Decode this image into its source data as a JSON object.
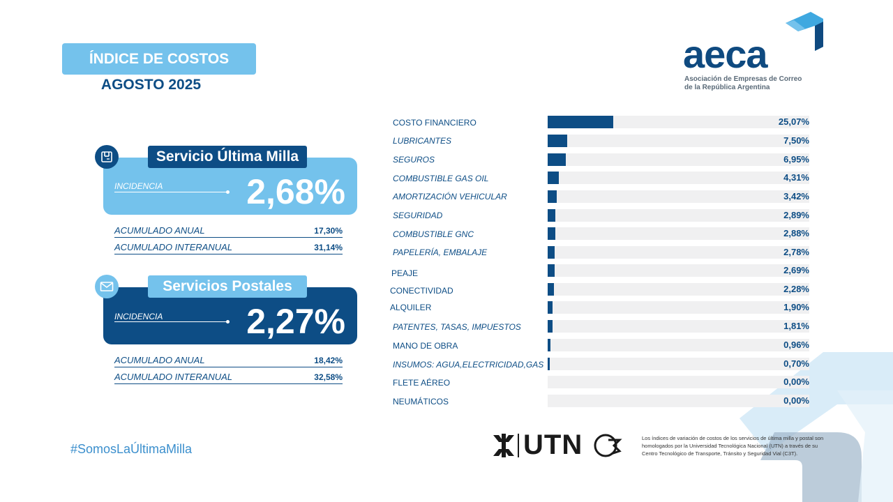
{
  "header": {
    "title": "ÍNDICE DE COSTOS",
    "subtitle": "AGOSTO 2025"
  },
  "logo": {
    "word": "aeca",
    "line1": "Asociación de Empresas de Correo",
    "line2": "de la República Argentina"
  },
  "panels": [
    {
      "title": "Servicio Última Milla",
      "icon": "box-icon",
      "incidencia_label": "INCIDENCIA",
      "incidencia_value": "2,68%",
      "acumulado_anual_label": "ACUMULADO ANUAL",
      "acumulado_anual": "17,30%",
      "acumulado_interanual_label": "ACUMULADO INTERANUAL",
      "acumulado_interanual": "31,14%"
    },
    {
      "title": "Servicios Postales",
      "icon": "mail-icon",
      "incidencia_label": "INCIDENCIA",
      "incidencia_value": "2,27%",
      "acumulado_anual_label": "ACUMULADO ANUAL",
      "acumulado_anual": "18,42%",
      "acumulado_interanual_label": "ACUMULADO INTERANUAL",
      "acumulado_interanual": "32,58%"
    }
  ],
  "chart_data": {
    "type": "bar",
    "orientation": "horizontal",
    "categories": [
      "COSTO FINANCIERO",
      "LUBRICANTES",
      "SEGUROS",
      "COMBUSTIBLE GAS OIL",
      "AMORTIZACIÓN VEHICULAR",
      "SEGURIDAD",
      "COMBUSTIBLE GNC",
      "PAPELERÍA, EMBALAJE",
      "PEAJE",
      "CONECTIVIDAD",
      "ALQUILER",
      "PATENTES, TASAS, IMPUESTOS",
      "MANO DE OBRA",
      "INSUMOS: AGUA,ELECTRICIDAD,GAS",
      "FLETE AÉREO",
      "NEUMÁTICOS"
    ],
    "values": [
      25.07,
      7.5,
      6.95,
      4.31,
      3.42,
      2.89,
      2.88,
      2.78,
      2.69,
      2.28,
      1.9,
      1.81,
      0.96,
      0.7,
      0.0,
      0.0
    ],
    "value_labels": [
      "25,07%",
      "7,50%",
      "6,95%",
      "4,31%",
      "3,42%",
      "2,89%",
      "2,88%",
      "2,78%",
      "2,69%",
      "2,28%",
      "1,90%",
      "1,81%",
      "0,96%",
      "0,70%",
      "0,00%",
      "0,00%"
    ],
    "xlim": [
      0,
      100
    ],
    "bar_color": "#0d4d85",
    "track_color": "#f0f0f1"
  },
  "footer": {
    "hashtag": "#SomosLaÚltimaMilla",
    "utn_text": "UTN",
    "note": "Los índices de variación de costos de los servicios de última milla y postal son homologados por la Universidad Tecnológica Nacional (UTN) a través de su Centro Tecnológico de Transporte, Tránsito y Seguridad Vial (C3T)."
  },
  "colors": {
    "light": "#74c2ec",
    "dark": "#0d4d85",
    "accent": "#3b8fcd"
  }
}
